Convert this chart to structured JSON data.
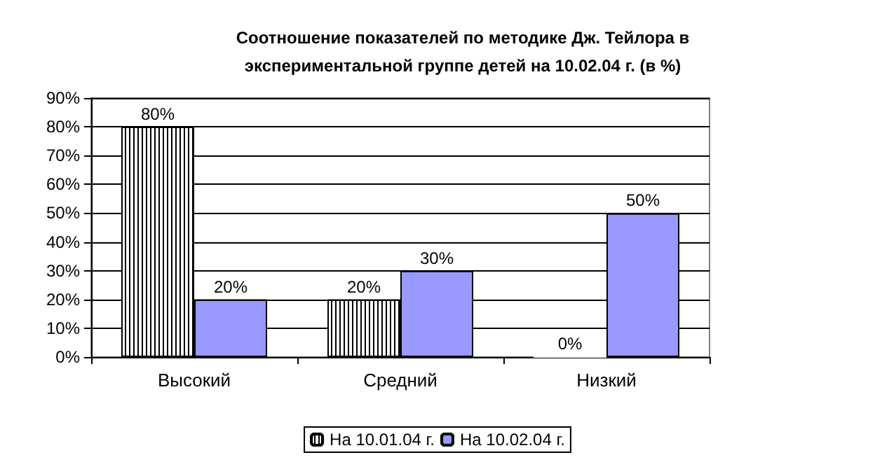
{
  "chart_data": {
    "type": "bar",
    "title": "Соотношение показателей по методике Дж. Тейлора в\nэкспериментальной группе детей на 10.02.04 г. (в %)",
    "categories": [
      "Высокий",
      "Средний",
      "Низкий"
    ],
    "series": [
      {
        "name": "На 10.01.04 г.",
        "color": "#ffffff",
        "values": [
          80,
          20,
          0
        ],
        "value_labels": [
          "80%",
          "20%",
          "0%"
        ]
      },
      {
        "name": "На 10.02.04 г.",
        "color": "#9999ff",
        "values": [
          20,
          30,
          50
        ],
        "value_labels": [
          "20%",
          "30%",
          "50%"
        ]
      }
    ],
    "ylim": [
      0,
      90
    ],
    "yticks": [
      {
        "value": 0,
        "label": "0%"
      },
      {
        "value": 10,
        "label": "10%"
      },
      {
        "value": 20,
        "label": "20%"
      },
      {
        "value": 30,
        "label": "30%"
      },
      {
        "value": 40,
        "label": "40%"
      },
      {
        "value": 50,
        "label": "50%"
      },
      {
        "value": 60,
        "label": "60%"
      },
      {
        "value": 70,
        "label": "70%"
      },
      {
        "value": 80,
        "label": "80%"
      },
      {
        "value": 90,
        "label": "90%"
      }
    ],
    "grid": "y",
    "legend": "bottom"
  }
}
